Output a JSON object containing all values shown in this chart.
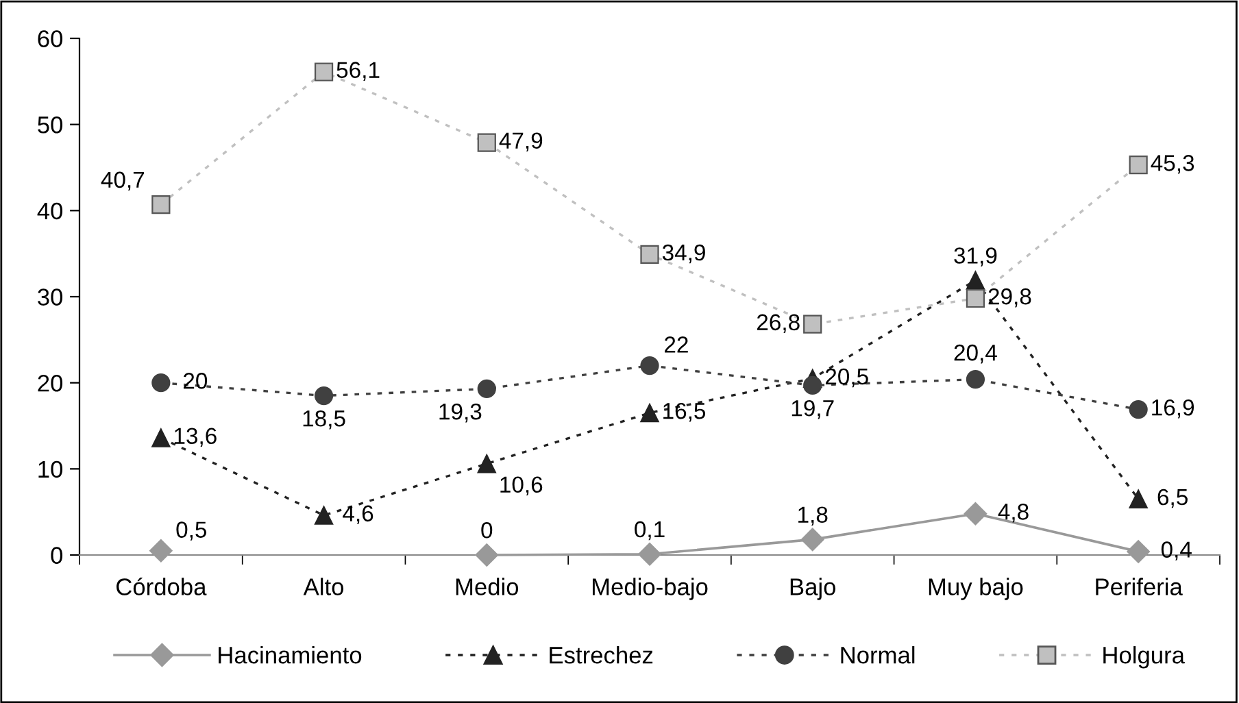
{
  "chart_data": {
    "type": "line",
    "categories": [
      "Córdoba",
      "Alto",
      "Medio",
      "Medio-bajo",
      "Bajo",
      "Muy bajo",
      "Periferia"
    ],
    "series": [
      {
        "name": "Hacinamiento",
        "color": "#999999",
        "marker": "diamond",
        "line_style": "solid",
        "values": [
          0.5,
          null,
          0,
          0.1,
          1.8,
          4.8,
          0.4
        ],
        "value_labels": [
          "0,5",
          null,
          "0",
          "0,1",
          "1,8",
          "4,8",
          "0,4"
        ]
      },
      {
        "name": "Estrechez",
        "color": "#222222",
        "marker": "triangle",
        "line_style": "dotted",
        "values": [
          13.6,
          4.6,
          10.6,
          16.5,
          20.5,
          31.9,
          6.5
        ],
        "value_labels": [
          "13,6",
          "4,6",
          "10,6",
          "16,5",
          "20,5",
          "31,9",
          "6,5"
        ]
      },
      {
        "name": "Normal",
        "color": "#404040",
        "marker": "circle",
        "line_style": "dotted",
        "values": [
          20,
          18.5,
          19.3,
          22,
          19.7,
          20.4,
          16.9
        ],
        "value_labels": [
          "20",
          "18,5",
          "19,3",
          "22",
          "19,7",
          "20,4",
          "16,9"
        ]
      },
      {
        "name": "Holgura",
        "color": "#c0c0c0",
        "marker": "square",
        "line_style": "dotted",
        "values": [
          40.7,
          56.1,
          47.9,
          34.9,
          26.8,
          29.8,
          45.3
        ],
        "value_labels": [
          "40,7",
          "56,1",
          "47,9",
          "34,9",
          "26,8",
          "29,8",
          "45,3"
        ]
      }
    ],
    "ylim": [
      0,
      60
    ],
    "yticks": [
      0,
      10,
      20,
      30,
      40,
      50,
      60
    ],
    "grid": false,
    "legend": "bottom"
  }
}
